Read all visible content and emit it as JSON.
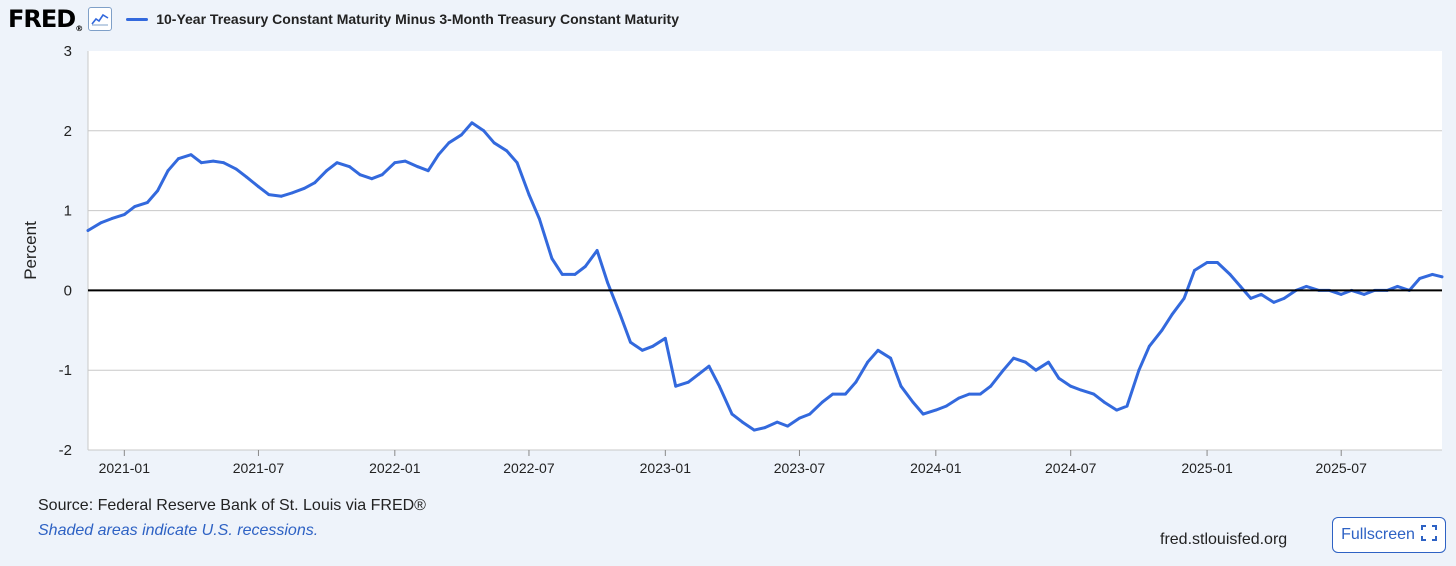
{
  "header": {
    "logo_text": "FRED",
    "logo_mark": "®",
    "trend_icon": "line-chart-icon",
    "series_title": "10-Year Treasury Constant Maturity Minus 3-Month Treasury Constant Maturity"
  },
  "footer": {
    "source": "Source: Federal Reserve Bank of St. Louis via FRED®",
    "recession_note": "Shaded areas indicate U.S. recessions.",
    "site": "fred.stlouisfed.org",
    "fullscreen_label": "Fullscreen",
    "fullscreen_icon": "expand-icon"
  },
  "colors": {
    "series": "#3369dd",
    "grid": "#c8c8c8",
    "zero_line": "#000000",
    "background": "#eef3fa",
    "plot_background": "#ffffff"
  },
  "chart_data": {
    "type": "line",
    "title": "10-Year Treasury Constant Maturity Minus 3-Month Treasury Constant Maturity",
    "xlabel": "",
    "ylabel": "Percent",
    "ylim": [
      -2,
      3
    ],
    "xlim": [
      "2020-11-13",
      "2025-11-14"
    ],
    "y_ticks": [
      "3",
      "2",
      "1",
      "0",
      "-1",
      "-2"
    ],
    "x_ticks": [
      {
        "date": "2021-01-01",
        "label": "2021-01"
      },
      {
        "date": "2021-07-01",
        "label": "2021-07"
      },
      {
        "date": "2022-01-01",
        "label": "2022-01"
      },
      {
        "date": "2022-07-01",
        "label": "2022-07"
      },
      {
        "date": "2023-01-01",
        "label": "2023-01"
      },
      {
        "date": "2023-07-01",
        "label": "2023-07"
      },
      {
        "date": "2024-01-01",
        "label": "2024-01"
      },
      {
        "date": "2024-07-01",
        "label": "2024-07"
      },
      {
        "date": "2025-01-01",
        "label": "2025-01"
      },
      {
        "date": "2025-07-01",
        "label": "2025-07"
      }
    ],
    "grid": true,
    "legend": "top-left",
    "series": [
      {
        "color": "#3369dd",
        "x": [
          "2020-11-13",
          "2020-12-01",
          "2020-12-15",
          "2021-01-01",
          "2021-01-15",
          "2021-02-01",
          "2021-02-15",
          "2021-03-01",
          "2021-03-15",
          "2021-04-01",
          "2021-04-15",
          "2021-05-01",
          "2021-05-15",
          "2021-06-01",
          "2021-06-15",
          "2021-07-01",
          "2021-07-15",
          "2021-08-01",
          "2021-08-15",
          "2021-09-01",
          "2021-09-15",
          "2021-10-01",
          "2021-10-15",
          "2021-11-01",
          "2021-11-15",
          "2021-12-01",
          "2021-12-15",
          "2022-01-01",
          "2022-01-15",
          "2022-02-01",
          "2022-02-15",
          "2022-03-01",
          "2022-03-15",
          "2022-04-01",
          "2022-04-15",
          "2022-05-01",
          "2022-05-15",
          "2022-06-01",
          "2022-06-15",
          "2022-07-01",
          "2022-07-15",
          "2022-08-01",
          "2022-08-15",
          "2022-09-01",
          "2022-09-15",
          "2022-10-01",
          "2022-10-15",
          "2022-11-01",
          "2022-11-15",
          "2022-12-01",
          "2022-12-15",
          "2023-01-01",
          "2023-01-15",
          "2023-02-01",
          "2023-02-15",
          "2023-03-01",
          "2023-03-15",
          "2023-04-01",
          "2023-04-15",
          "2023-05-01",
          "2023-05-15",
          "2023-06-01",
          "2023-06-15",
          "2023-07-01",
          "2023-07-15",
          "2023-08-01",
          "2023-08-15",
          "2023-09-01",
          "2023-09-15",
          "2023-10-01",
          "2023-10-15",
          "2023-11-01",
          "2023-11-15",
          "2023-12-01",
          "2023-12-15",
          "2024-01-01",
          "2024-01-15",
          "2024-02-01",
          "2024-02-15",
          "2024-03-01",
          "2024-03-15",
          "2024-04-01",
          "2024-04-15",
          "2024-05-01",
          "2024-05-15",
          "2024-06-01",
          "2024-06-15",
          "2024-07-01",
          "2024-07-15",
          "2024-08-01",
          "2024-08-15",
          "2024-09-01",
          "2024-09-15",
          "2024-10-01",
          "2024-10-15",
          "2024-11-01",
          "2024-11-15",
          "2024-12-01",
          "2024-12-15",
          "2025-01-01",
          "2025-01-15",
          "2025-02-01",
          "2025-02-15",
          "2025-03-01",
          "2025-03-15",
          "2025-04-01",
          "2025-04-15",
          "2025-05-01",
          "2025-05-15",
          "2025-06-01",
          "2025-06-15",
          "2025-07-01",
          "2025-07-15",
          "2025-08-01",
          "2025-08-15",
          "2025-09-01",
          "2025-09-15",
          "2025-10-01",
          "2025-10-15",
          "2025-11-01",
          "2025-11-14"
        ],
        "values": [
          0.75,
          0.85,
          0.9,
          0.95,
          1.05,
          1.1,
          1.25,
          1.5,
          1.65,
          1.7,
          1.6,
          1.62,
          1.6,
          1.52,
          1.42,
          1.3,
          1.2,
          1.18,
          1.22,
          1.28,
          1.35,
          1.5,
          1.6,
          1.55,
          1.45,
          1.4,
          1.45,
          1.6,
          1.62,
          1.55,
          1.5,
          1.7,
          1.85,
          1.95,
          2.1,
          2.0,
          1.85,
          1.75,
          1.6,
          1.2,
          0.9,
          0.4,
          0.2,
          0.2,
          0.3,
          0.5,
          0.1,
          -0.3,
          -0.65,
          -0.75,
          -0.7,
          -0.6,
          -1.2,
          -1.15,
          -1.05,
          -0.95,
          -1.2,
          -1.55,
          -1.65,
          -1.75,
          -1.72,
          -1.65,
          -1.7,
          -1.6,
          -1.55,
          -1.4,
          -1.3,
          -1.3,
          -1.15,
          -0.9,
          -0.75,
          -0.85,
          -1.2,
          -1.4,
          -1.55,
          -1.5,
          -1.45,
          -1.35,
          -1.3,
          -1.3,
          -1.2,
          -1.0,
          -0.85,
          -0.9,
          -1.0,
          -0.9,
          -1.1,
          -1.2,
          -1.25,
          -1.3,
          -1.4,
          -1.5,
          -1.45,
          -1.0,
          -0.7,
          -0.5,
          -0.3,
          -0.1,
          0.25,
          0.35,
          0.35,
          0.2,
          0.05,
          -0.1,
          -0.05,
          -0.15,
          -0.1,
          0.0,
          0.05,
          0.0,
          0.0,
          -0.05,
          0.0,
          -0.05,
          0.0,
          0.0,
          0.05,
          0.0,
          0.15,
          0.2,
          0.17
        ]
      }
    ]
  }
}
